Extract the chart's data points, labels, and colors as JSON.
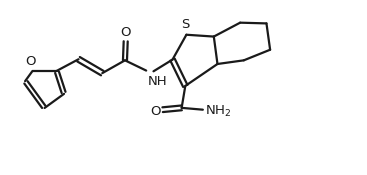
{
  "bg_color": "#ffffff",
  "line_color": "#1a1a1a",
  "line_width": 1.6,
  "figsize": [
    3.67,
    1.75
  ],
  "dpi": 100,
  "xlim": [
    0.0,
    10.0
  ],
  "ylim": [
    0.5,
    5.2
  ]
}
